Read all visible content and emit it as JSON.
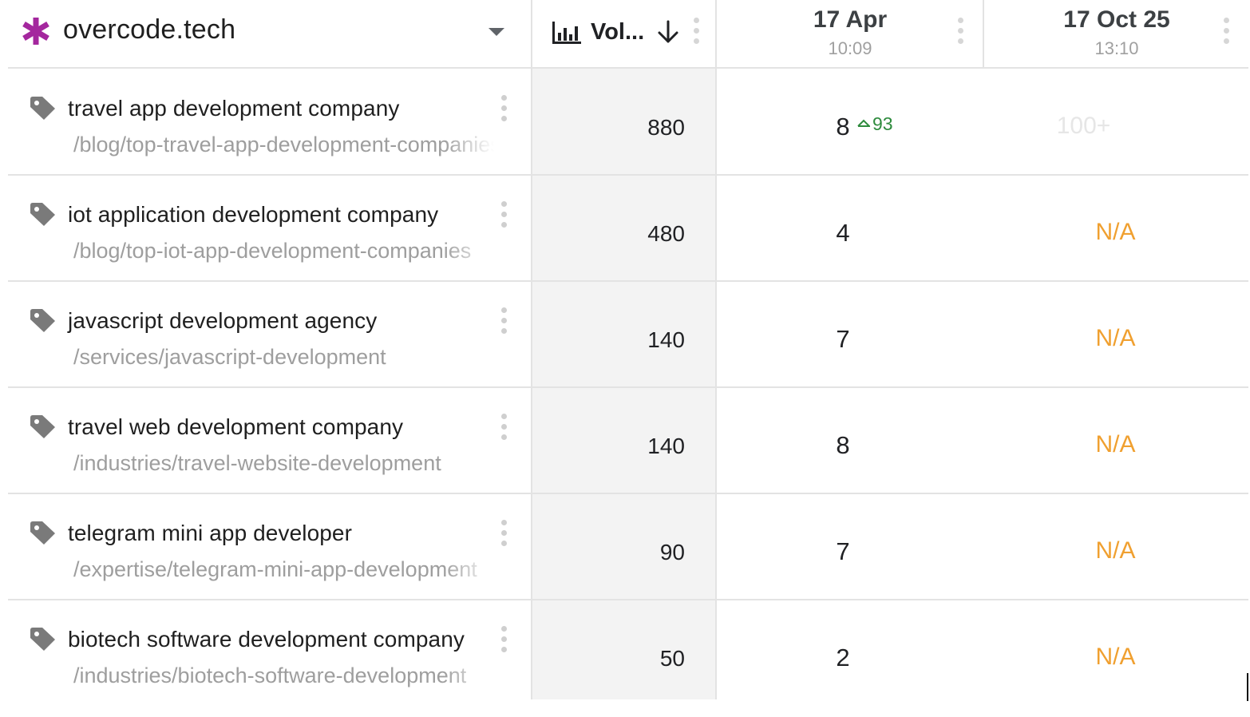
{
  "header": {
    "project_name": "overcode.tech",
    "volume_label": "Vol...",
    "dates": [
      {
        "date": "17 Apr",
        "time": "10:09"
      },
      {
        "date": "17 Oct 25",
        "time": "13:10"
      }
    ],
    "icons": {
      "project": "asterisk-icon",
      "dropdown": "caret-down-icon",
      "volume": "bar-chart-icon",
      "sort": "arrow-down-icon",
      "menu": "kebab-menu-icon"
    },
    "colors": {
      "project_star": "#a4279e",
      "na": "#f0a030",
      "up": "#2e8b3d"
    }
  },
  "rows": [
    {
      "keyword": "travel app development company",
      "url": "/blog/top-travel-app-development-companies",
      "volume": "880",
      "pos1": "8",
      "delta": "93",
      "pos2": "100+"
    },
    {
      "keyword": "iot application development company",
      "url": "/blog/top-iot-app-development-companies",
      "volume": "480",
      "pos1": "4",
      "delta": "",
      "pos2": "N/A"
    },
    {
      "keyword": "javascript development agency",
      "url": "/services/javascript-development",
      "volume": "140",
      "pos1": "7",
      "delta": "",
      "pos2": "N/A"
    },
    {
      "keyword": "travel web development company",
      "url": "/industries/travel-website-development",
      "volume": "140",
      "pos1": "8",
      "delta": "",
      "pos2": "N/A"
    },
    {
      "keyword": "telegram mini app developer",
      "url": "/expertise/telegram-mini-app-development",
      "volume": "90",
      "pos1": "7",
      "delta": "",
      "pos2": "N/A"
    },
    {
      "keyword": "biotech software development company",
      "url": "/industries/biotech-software-development",
      "volume": "50",
      "pos1": "2",
      "delta": "",
      "pos2": "N/A"
    }
  ]
}
